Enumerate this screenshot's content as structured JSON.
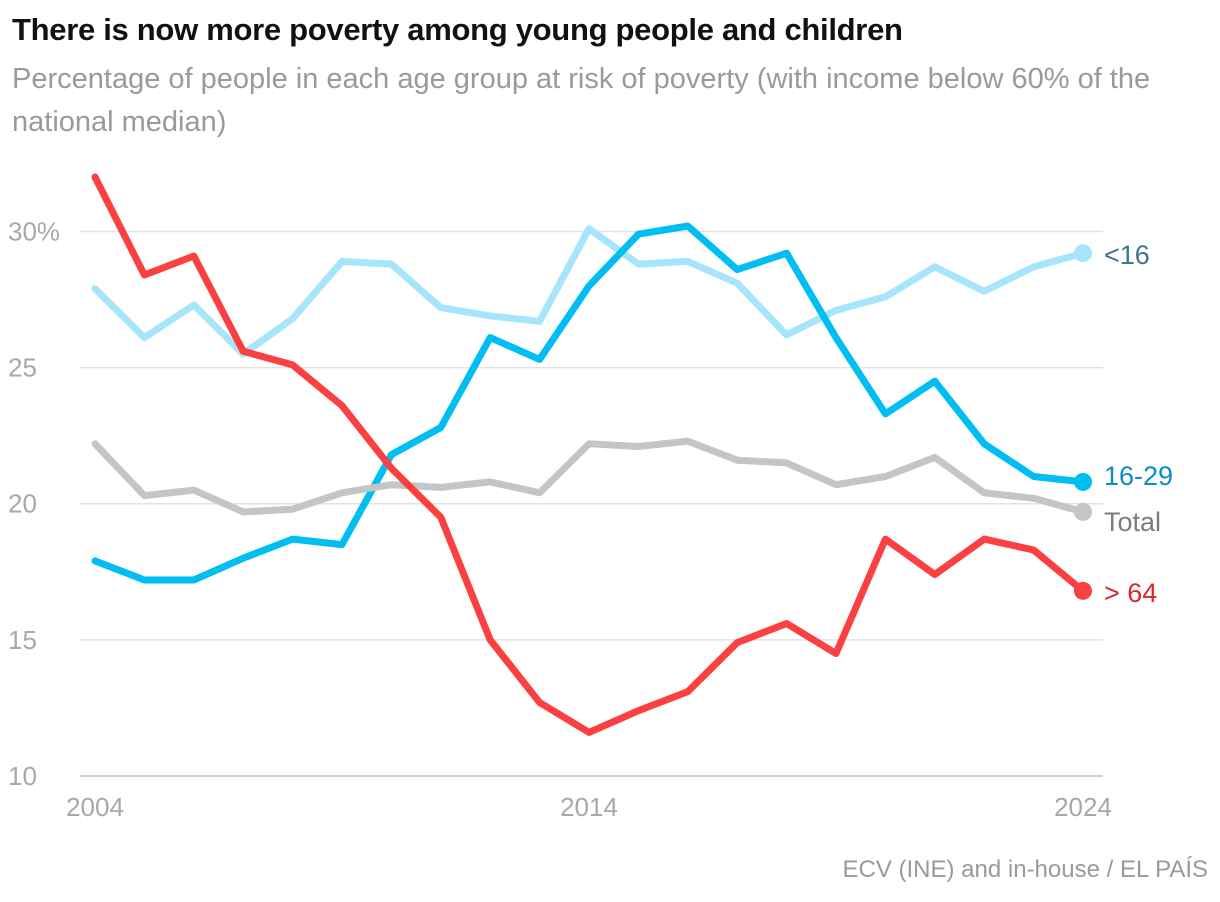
{
  "chart_data": {
    "type": "line",
    "title": "There is now more poverty among young people and children",
    "subtitle": "Percentage of people in each age group at risk of poverty (with income below 60% of the national median)",
    "source": "ECV (INE) and in-house / EL PAÍS",
    "x": [
      2004,
      2005,
      2006,
      2007,
      2008,
      2009,
      2010,
      2011,
      2012,
      2013,
      2014,
      2015,
      2016,
      2017,
      2018,
      2019,
      2020,
      2021,
      2022,
      2023,
      2024
    ],
    "x_ticks": [
      {
        "value": 2004,
        "label": "2004"
      },
      {
        "value": 2014,
        "label": "2014"
      },
      {
        "value": 2024,
        "label": "2024"
      }
    ],
    "ylim": [
      10,
      32
    ],
    "y_ticks": [
      {
        "value": 10,
        "label": "10"
      },
      {
        "value": 15,
        "label": "15"
      },
      {
        "value": 20,
        "label": "20"
      },
      {
        "value": 25,
        "label": "25"
      },
      {
        "value": 30,
        "label": "30%"
      }
    ],
    "xlabel": "",
    "ylabel": "",
    "grid": true,
    "series": [
      {
        "name": "<16",
        "color": "#a6e5fb",
        "label_color": "#3e7687",
        "values": [
          27.9,
          26.1,
          27.3,
          25.5,
          26.8,
          28.9,
          28.8,
          27.2,
          26.9,
          26.7,
          30.1,
          28.8,
          28.9,
          28.1,
          26.2,
          27.1,
          27.6,
          28.7,
          27.8,
          28.7,
          29.2
        ]
      },
      {
        "name": "16-29",
        "color": "#00bdf2",
        "label_color": "#0a8cc4",
        "values": [
          17.9,
          17.2,
          17.2,
          18.0,
          18.7,
          18.5,
          21.8,
          22.8,
          26.1,
          25.3,
          28.0,
          29.9,
          30.2,
          28.6,
          29.2,
          26.1,
          23.3,
          24.5,
          22.2,
          21.0,
          20.8
        ]
      },
      {
        "name": "Total",
        "color": "#c3c6c8",
        "label_color": "#7d7d7d",
        "values": [
          22.2,
          20.3,
          20.5,
          19.7,
          19.8,
          20.4,
          20.7,
          20.6,
          20.8,
          20.4,
          22.2,
          22.1,
          22.3,
          21.6,
          21.5,
          20.7,
          21.0,
          21.7,
          20.4,
          20.2,
          19.7
        ]
      },
      {
        "name": "> 64",
        "color": "#fa4040",
        "label_color": "#d92730",
        "values": [
          32.0,
          28.4,
          29.1,
          25.6,
          25.1,
          23.6,
          21.3,
          19.5,
          15.0,
          12.7,
          11.6,
          12.4,
          13.1,
          14.9,
          15.6,
          14.5,
          18.7,
          17.4,
          18.7,
          18.3,
          16.8
        ]
      }
    ]
  }
}
